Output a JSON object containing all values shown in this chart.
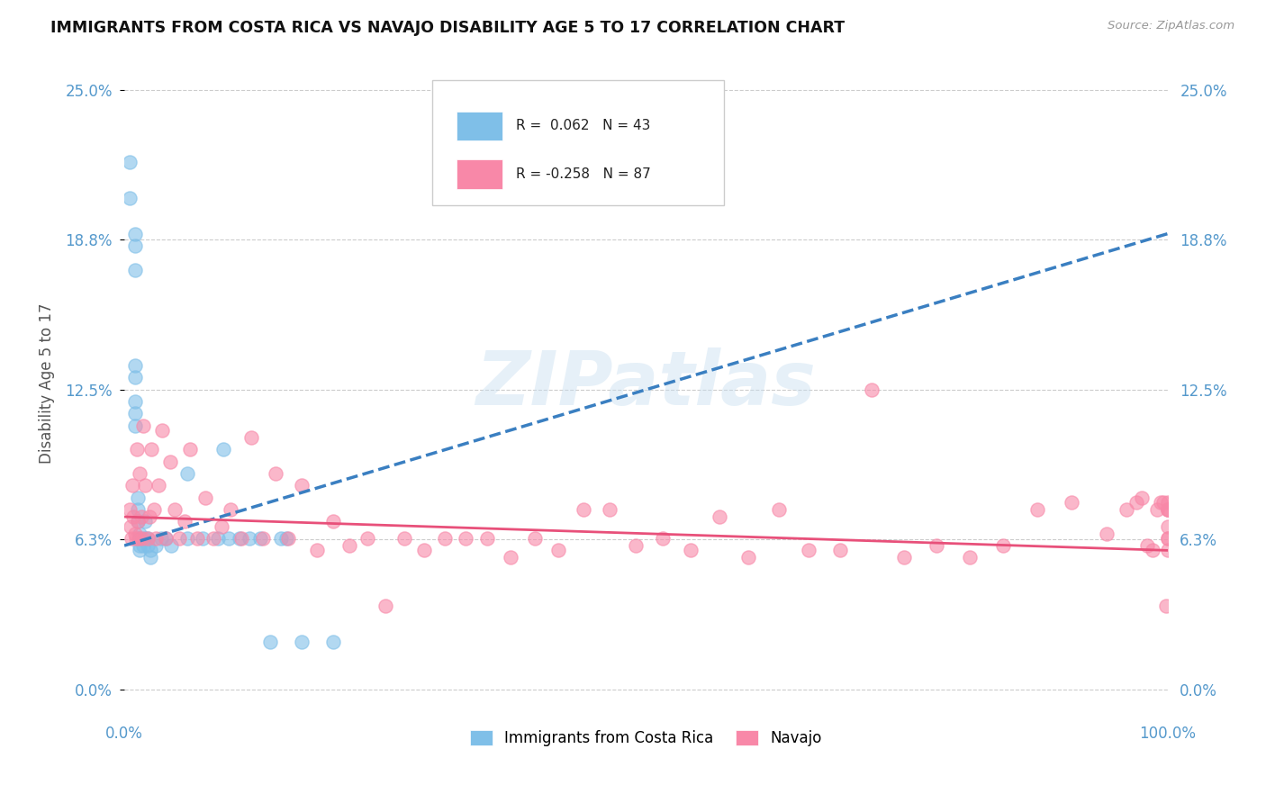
{
  "title": "IMMIGRANTS FROM COSTA RICA VS NAVAJO DISABILITY AGE 5 TO 17 CORRELATION CHART",
  "source": "Source: ZipAtlas.com",
  "ylabel": "Disability Age 5 to 17",
  "xlim": [
    0.0,
    1.0
  ],
  "ylim": [
    -0.01,
    0.265
  ],
  "ytick_vals": [
    0.0,
    0.0625,
    0.125,
    0.1875,
    0.25
  ],
  "ytick_labels": [
    "0.0%",
    "6.3%",
    "12.5%",
    "18.8%",
    "25.0%"
  ],
  "xtick_vals": [
    0.0,
    1.0
  ],
  "xtick_labels": [
    "0.0%",
    "100.0%"
  ],
  "watermark": "ZIPatlas",
  "blue_R": 0.062,
  "blue_N": 43,
  "pink_R": -0.258,
  "pink_N": 87,
  "blue_color": "#7fbfe8",
  "pink_color": "#f888a8",
  "blue_line_color": "#3a7fc1",
  "pink_line_color": "#e8507a",
  "legend_blue_label": "Immigrants from Costa Rica",
  "legend_pink_label": "Navajo",
  "blue_line_x0": 0.0,
  "blue_line_y0": 0.06,
  "blue_line_x1": 1.0,
  "blue_line_y1": 0.19,
  "pink_line_x0": 0.0,
  "pink_line_y0": 0.072,
  "pink_line_x1": 1.0,
  "pink_line_y1": 0.058,
  "blue_scatter_x": [
    0.005,
    0.005,
    0.01,
    0.01,
    0.01,
    0.01,
    0.01,
    0.01,
    0.01,
    0.01,
    0.013,
    0.013,
    0.013,
    0.015,
    0.015,
    0.015,
    0.015,
    0.015,
    0.018,
    0.02,
    0.02,
    0.022,
    0.022,
    0.025,
    0.025,
    0.03,
    0.035,
    0.04,
    0.045,
    0.06,
    0.06,
    0.075,
    0.09,
    0.095,
    0.1,
    0.11,
    0.12,
    0.13,
    0.14,
    0.15,
    0.155,
    0.17,
    0.2
  ],
  "blue_scatter_y": [
    0.22,
    0.205,
    0.19,
    0.185,
    0.175,
    0.135,
    0.13,
    0.12,
    0.115,
    0.11,
    0.08,
    0.075,
    0.07,
    0.065,
    0.063,
    0.063,
    0.06,
    0.058,
    0.06,
    0.07,
    0.063,
    0.063,
    0.06,
    0.058,
    0.055,
    0.06,
    0.063,
    0.063,
    0.06,
    0.063,
    0.09,
    0.063,
    0.063,
    0.1,
    0.063,
    0.063,
    0.063,
    0.063,
    0.02,
    0.063,
    0.063,
    0.02,
    0.02
  ],
  "pink_scatter_x": [
    0.005,
    0.006,
    0.007,
    0.008,
    0.009,
    0.01,
    0.011,
    0.012,
    0.013,
    0.014,
    0.015,
    0.016,
    0.017,
    0.018,
    0.02,
    0.022,
    0.024,
    0.026,
    0.028,
    0.03,
    0.033,
    0.036,
    0.04,
    0.044,
    0.048,
    0.053,
    0.058,
    0.063,
    0.07,
    0.078,
    0.085,
    0.093,
    0.102,
    0.112,
    0.122,
    0.133,
    0.145,
    0.157,
    0.17,
    0.185,
    0.2,
    0.216,
    0.233,
    0.25,
    0.268,
    0.287,
    0.307,
    0.327,
    0.348,
    0.37,
    0.393,
    0.416,
    0.44,
    0.465,
    0.49,
    0.516,
    0.543,
    0.57,
    0.598,
    0.627,
    0.656,
    0.686,
    0.716,
    0.747,
    0.778,
    0.81,
    0.842,
    0.875,
    0.908,
    0.941,
    0.96,
    0.97,
    0.975,
    0.98,
    0.985,
    0.99,
    0.993,
    0.996,
    0.998,
    1.0,
    1.0,
    1.0,
    1.0,
    1.0,
    1.0,
    1.0,
    1.0
  ],
  "pink_scatter_y": [
    0.075,
    0.068,
    0.063,
    0.085,
    0.072,
    0.065,
    0.063,
    0.1,
    0.07,
    0.063,
    0.09,
    0.072,
    0.063,
    0.11,
    0.085,
    0.063,
    0.072,
    0.1,
    0.075,
    0.063,
    0.085,
    0.108,
    0.063,
    0.095,
    0.075,
    0.063,
    0.07,
    0.1,
    0.063,
    0.08,
    0.063,
    0.068,
    0.075,
    0.063,
    0.105,
    0.063,
    0.09,
    0.063,
    0.085,
    0.058,
    0.07,
    0.06,
    0.063,
    0.035,
    0.063,
    0.058,
    0.063,
    0.063,
    0.063,
    0.055,
    0.063,
    0.058,
    0.075,
    0.075,
    0.06,
    0.063,
    0.058,
    0.072,
    0.055,
    0.075,
    0.058,
    0.058,
    0.125,
    0.055,
    0.06,
    0.055,
    0.06,
    0.075,
    0.078,
    0.065,
    0.075,
    0.078,
    0.08,
    0.06,
    0.058,
    0.075,
    0.078,
    0.078,
    0.035,
    0.058,
    0.063,
    0.068,
    0.075,
    0.075,
    0.075,
    0.078,
    0.063
  ]
}
